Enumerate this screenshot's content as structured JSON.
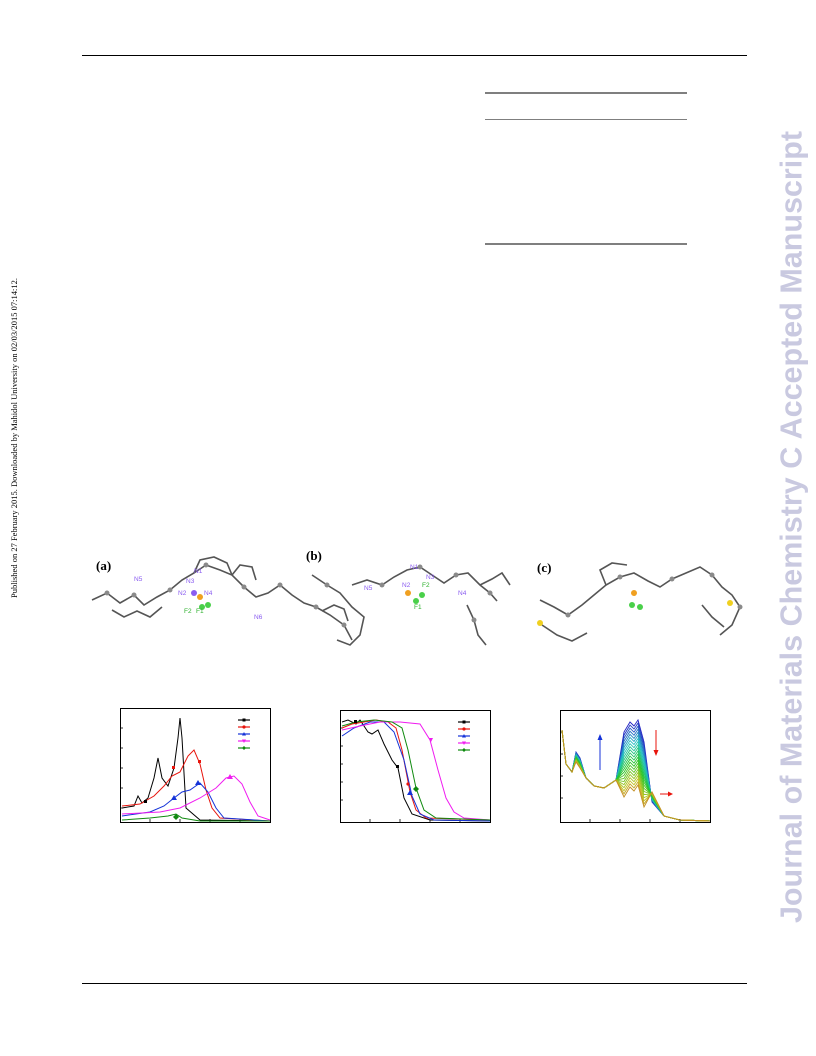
{
  "side_note": "Published on 27 February 2015. Downloaded by Mahidol University on 02/03/2015 07:14:12.",
  "watermark": "Journal of Materials Chemistry C Accepted Manuscript",
  "crystal_panels": [
    {
      "label": "(a)",
      "atoms": [
        "N3",
        "N1",
        "N2",
        "N4",
        "F2",
        "F1",
        "N5",
        "N6"
      ]
    },
    {
      "label": "(b)",
      "atoms": [
        "N1",
        "N3",
        "N2",
        "F2",
        "F1",
        "N5",
        "N4"
      ]
    },
    {
      "label": "(c)",
      "atoms": []
    }
  ],
  "colors": {
    "black": "#000000",
    "red": "#e8140c",
    "blue": "#1432d8",
    "magenta": "#f01cf0",
    "green": "#0f8a0f"
  }
}
